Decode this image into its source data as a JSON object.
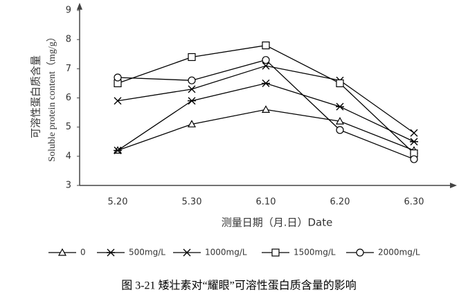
{
  "chart_data": {
    "type": "line",
    "caption": "图 3-21  矮壮素对“耀眼”可溶性蛋白质含量的影响",
    "x_label": "测量日期（月.日）Date",
    "y_label": [
      "可溶性蛋白质含量",
      "Soluble protein content（mg/g）"
    ],
    "categories": [
      "5.20",
      "5.30",
      "6.10",
      "6.20",
      "6.30"
    ],
    "series": [
      {
        "name": "0",
        "color": "#000000",
        "marker": "triangle",
        "values": [
          4.2,
          5.1,
          5.6,
          5.2,
          4.2
        ]
      },
      {
        "name": "500mg/L",
        "color": "#000000",
        "marker": "asterisk",
        "values": [
          4.2,
          5.9,
          6.5,
          5.7,
          4.5
        ]
      },
      {
        "name": "1000mg/L",
        "color": "#000000",
        "marker": "cross",
        "values": [
          5.9,
          6.3,
          7.1,
          6.6,
          4.8
        ]
      },
      {
        "name": "1500mg/L",
        "color": "#000000",
        "marker": "square",
        "values": [
          6.5,
          7.4,
          7.8,
          6.5,
          4.1
        ]
      },
      {
        "name": "2000mg/L",
        "color": "#000000",
        "marker": "circle",
        "values": [
          6.7,
          6.6,
          7.3,
          4.9,
          3.9
        ]
      }
    ],
    "ylim": [
      3,
      9
    ],
    "yticks": [
      3,
      4,
      5,
      6,
      7,
      8,
      9
    ],
    "grid": false,
    "legend": "bottom"
  }
}
